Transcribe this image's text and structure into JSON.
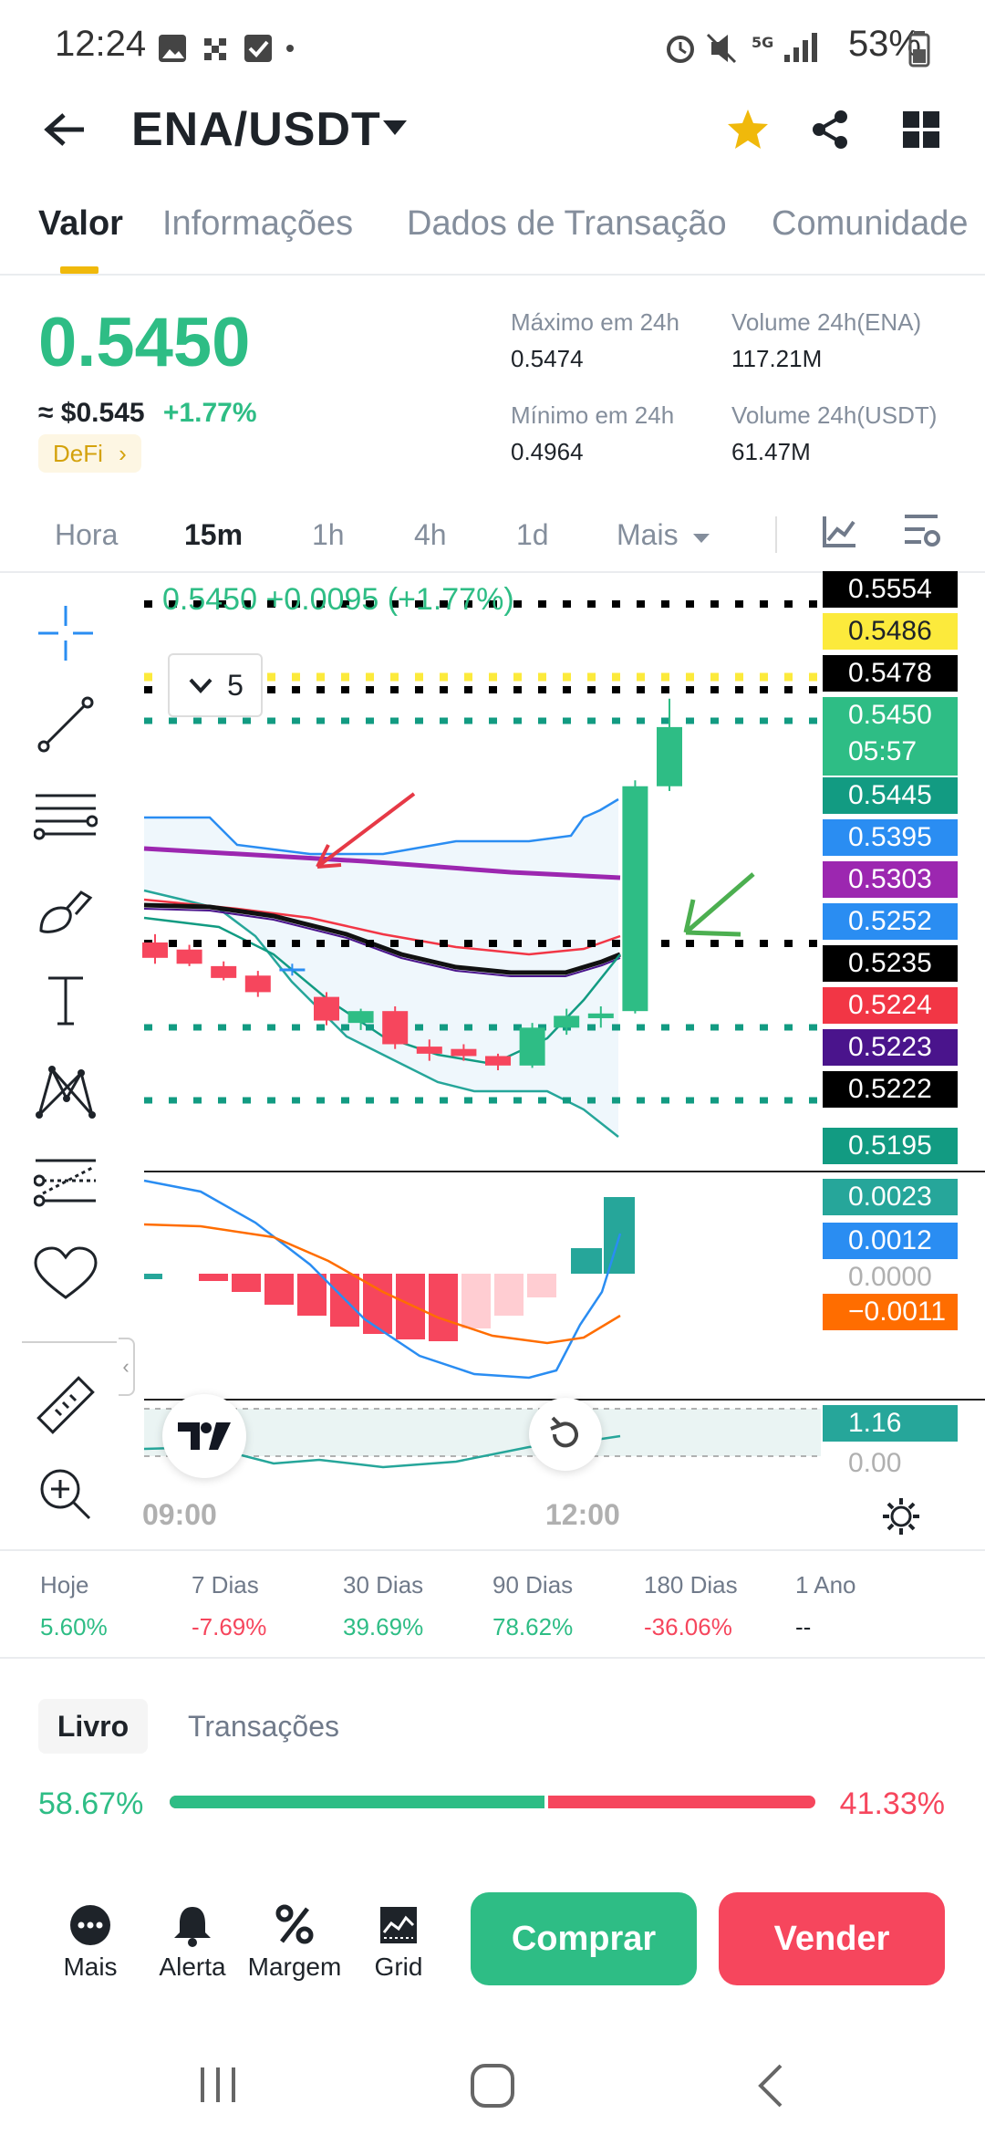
{
  "status_bar": {
    "time": "12:24",
    "battery": "53%"
  },
  "header": {
    "pair": "ENA/USDT"
  },
  "tabs": [
    {
      "label": "Valor"
    },
    {
      "label": "Informações"
    },
    {
      "label": "Dados de Transação"
    },
    {
      "label": "Comunidade"
    }
  ],
  "price": {
    "last": "0.5450",
    "usd": "≈ $0.545",
    "change": "+1.77%",
    "tag": "DeFi"
  },
  "stats": {
    "high_label": "Máximo em 24h",
    "high": "0.5474",
    "low_label": "Mínimo em 24h",
    "low": "0.4964",
    "vol_ena_label": "Volume 24h(ENA)",
    "vol_ena": "117.21M",
    "vol_usdt_label": "Volume 24h(USDT)",
    "vol_usdt": "61.47M"
  },
  "intervals": [
    "Hora",
    "15m",
    "1h",
    "4h",
    "1d",
    "Mais"
  ],
  "chart": {
    "legend": "0.5450 +0.0095 (+1.77%)",
    "depth_selector": "5",
    "countdown": "05:57",
    "price_labels": [
      {
        "value": "0.5554",
        "color": "#000000",
        "text": "#ffffff"
      },
      {
        "value": "0.5486",
        "color": "#fcea3c",
        "text": "#1e2329"
      },
      {
        "value": "0.5478",
        "color": "#000000",
        "text": "#ffffff"
      },
      {
        "value": "0.5450",
        "color": "#2ebd85",
        "text": "#ffffff"
      },
      {
        "value": "0.5445",
        "color": "#129b82",
        "text": "#ffffff"
      },
      {
        "value": "0.5395",
        "color": "#2a8df2",
        "text": "#ffffff"
      },
      {
        "value": "0.5303",
        "color": "#9c27b0",
        "text": "#ffffff"
      },
      {
        "value": "0.5252",
        "color": "#2a8df2",
        "text": "#ffffff"
      },
      {
        "value": "0.5235",
        "color": "#000000",
        "text": "#ffffff"
      },
      {
        "value": "0.5224",
        "color": "#f23645",
        "text": "#ffffff"
      },
      {
        "value": "0.5223",
        "color": "#4a148c",
        "text": "#ffffff"
      },
      {
        "value": "0.5222",
        "color": "#000000",
        "text": "#ffffff"
      },
      {
        "value": "0.5195",
        "color": "#129b82",
        "text": "#ffffff"
      }
    ],
    "macd_labels": [
      {
        "value": "0.0023",
        "color": "#26a69a",
        "text": "#ffffff"
      },
      {
        "value": "0.0012",
        "color": "#2a8df2",
        "text": "#ffffff"
      },
      {
        "value": "0.0000",
        "color": "transparent",
        "text": "#b0b0b0"
      },
      {
        "value": "−0.0011",
        "color": "#ff6d00",
        "text": "#ffffff"
      }
    ],
    "rsi_labels": [
      {
        "value": "1.16",
        "color": "#26a69a",
        "text": "#ffffff"
      },
      {
        "value": "0.00",
        "color": "transparent",
        "text": "#b0b0b0"
      }
    ],
    "time_labels": [
      "09:00",
      "12:00"
    ],
    "candles": [
      {
        "o": 0.5268,
        "h": 0.5275,
        "l": 0.525,
        "c": 0.5255
      },
      {
        "o": 0.5262,
        "h": 0.5266,
        "l": 0.5248,
        "c": 0.525
      },
      {
        "o": 0.5248,
        "h": 0.5252,
        "l": 0.5236,
        "c": 0.5238
      },
      {
        "o": 0.524,
        "h": 0.5244,
        "l": 0.5222,
        "c": 0.5226
      },
      {
        "o": 0.5246,
        "h": 0.525,
        "l": 0.524,
        "c": 0.5244
      },
      {
        "o": 0.5222,
        "h": 0.5226,
        "l": 0.5198,
        "c": 0.5202
      },
      {
        "o": 0.52,
        "h": 0.5212,
        "l": 0.5194,
        "c": 0.521
      },
      {
        "o": 0.521,
        "h": 0.5214,
        "l": 0.5178,
        "c": 0.5182
      },
      {
        "o": 0.518,
        "h": 0.5186,
        "l": 0.5168,
        "c": 0.5174
      },
      {
        "o": 0.5178,
        "h": 0.5182,
        "l": 0.5168,
        "c": 0.5172
      },
      {
        "o": 0.5172,
        "h": 0.5174,
        "l": 0.516,
        "c": 0.5164
      },
      {
        "o": 0.5164,
        "h": 0.52,
        "l": 0.5162,
        "c": 0.5196
      },
      {
        "o": 0.5196,
        "h": 0.5212,
        "l": 0.519,
        "c": 0.5206
      },
      {
        "o": 0.5204,
        "h": 0.5214,
        "l": 0.5196,
        "c": 0.5208
      },
      {
        "o": 0.521,
        "h": 0.5405,
        "l": 0.5208,
        "c": 0.54
      },
      {
        "o": 0.54,
        "h": 0.5474,
        "l": 0.5396,
        "c": 0.545
      }
    ]
  },
  "performance": [
    {
      "label": "Hoje",
      "value": "5.60%",
      "trend": "up"
    },
    {
      "label": "7 Dias",
      "value": "-7.69%",
      "trend": "down"
    },
    {
      "label": "30 Dias",
      "value": "39.69%",
      "trend": "up"
    },
    {
      "label": "90 Dias",
      "value": "78.62%",
      "trend": "up"
    },
    {
      "label": "180 Dias",
      "value": "-36.06%",
      "trend": "down"
    },
    {
      "label": "1 Ano",
      "value": "--",
      "trend": "none"
    }
  ],
  "book": {
    "tab_active": "Livro",
    "tab_other": "Transações",
    "bid_pct": "58.67%",
    "ask_pct": "41.33%",
    "bid_fraction": 0.5867
  },
  "bottom": {
    "items": [
      {
        "label": "Mais",
        "icon": "more-icon"
      },
      {
        "label": "Alerta",
        "icon": "bell-icon"
      },
      {
        "label": "Margem",
        "icon": "margin-icon"
      },
      {
        "label": "Grid",
        "icon": "grid-bot-icon"
      }
    ],
    "buy": "Comprar",
    "sell": "Vender",
    "buy_color": "#2ebd85",
    "sell_color": "#f6465d"
  }
}
